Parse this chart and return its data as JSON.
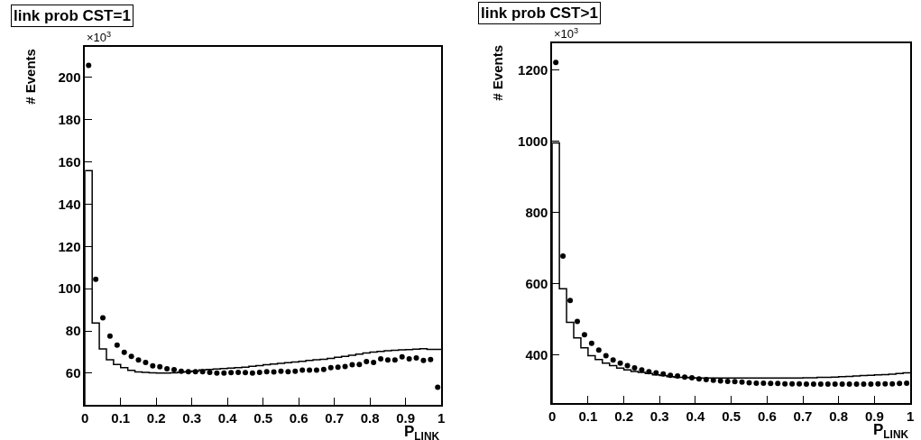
{
  "chart_data": [
    {
      "type": "histogram",
      "title": "link prob CST=1",
      "xlabel": "P$_{LINK}$",
      "ylabel": "# Events",
      "annotations": [
        "×10$^{3}$"
      ],
      "bins": [
        0,
        0.02,
        0.04,
        0.06,
        0.08,
        0.1,
        0.12,
        0.14,
        0.16,
        0.18,
        0.2,
        0.22,
        0.24,
        0.26,
        0.28,
        0.3,
        0.32,
        0.34,
        0.36,
        0.38,
        0.4,
        0.42,
        0.44,
        0.46,
        0.48,
        0.5,
        0.52,
        0.54,
        0.56,
        0.58,
        0.6,
        0.62,
        0.64,
        0.66,
        0.68,
        0.7,
        0.72,
        0.74,
        0.76,
        0.78,
        0.8,
        0.82,
        0.84,
        0.86,
        0.88,
        0.9,
        0.92,
        0.94,
        0.96,
        0.98,
        1
      ],
      "series": [
        {
          "color": "#000000",
          "values": [
            155.9,
            83.7,
            71.5,
            66.4,
            64.1,
            62.6,
            61.3,
            60.6,
            60.4,
            60.2,
            60,
            60,
            60.2,
            60.5,
            60.7,
            61,
            61.5,
            61.8,
            62,
            62.2,
            62.4,
            62.6,
            62.8,
            63.2,
            63.6,
            64,
            64.3,
            64.6,
            65,
            65.3,
            65.6,
            66,
            66.3,
            66.6,
            67,
            67.5,
            68,
            68.5,
            69,
            69.5,
            70,
            70.3,
            70.6,
            70.8,
            71,
            71.2,
            71.4,
            71.6,
            71.3,
            71.3
          ]
        },
        {
          "type": "scatter",
          "color": "#000000",
          "x": [
            0.01,
            0.03,
            0.05,
            0.07,
            0.09,
            0.11,
            0.13,
            0.15,
            0.17,
            0.19,
            0.21,
            0.23,
            0.25,
            0.27,
            0.29,
            0.31,
            0.33,
            0.35,
            0.37,
            0.39,
            0.41,
            0.43,
            0.45,
            0.47,
            0.49,
            0.51,
            0.53,
            0.55,
            0.57,
            0.59,
            0.61,
            0.63,
            0.65,
            0.67,
            0.69,
            0.71,
            0.73,
            0.75,
            0.77,
            0.79,
            0.81,
            0.83,
            0.85,
            0.87,
            0.89,
            0.91,
            0.93,
            0.95,
            0.97,
            0.99
          ],
          "values": [
            205.7,
            104.5,
            86.2,
            77.6,
            73.3,
            69.9,
            67.9,
            66.2,
            65.1,
            63.5,
            63,
            62.1,
            61.6,
            60.9,
            60.7,
            60.7,
            60.7,
            60.4,
            60,
            60.1,
            60.3,
            60.4,
            60.3,
            60.1,
            60.4,
            60.7,
            60.6,
            60.9,
            60.7,
            60.9,
            61.4,
            61.4,
            61.4,
            61.8,
            62.6,
            62.8,
            63.1,
            64,
            64.1,
            65.5,
            65.1,
            66.8,
            66.2,
            66.2,
            67.7,
            66.8,
            67.2,
            66,
            66.5,
            53.3
          ]
        }
      ],
      "xlim": [
        0,
        1
      ],
      "xticks": [
        0,
        0.1,
        0.2,
        0.3,
        0.4,
        0.5,
        0.6,
        0.7,
        0.8,
        0.9,
        1
      ],
      "ylim": [
        45,
        214.5
      ],
      "yticks": [
        60,
        80,
        100,
        120,
        140,
        160,
        180,
        200
      ],
      "marker": "circle"
    },
    {
      "type": "histogram",
      "title": "link prob CST>1",
      "xlabel": "P$_{LINK}$",
      "ylabel": "# Events",
      "annotations": [
        "×10$^{3}$"
      ],
      "bins": [
        0,
        0.02,
        0.04,
        0.06,
        0.08,
        0.1,
        0.12,
        0.14,
        0.16,
        0.18,
        0.2,
        0.22,
        0.24,
        0.26,
        0.28,
        0.3,
        0.32,
        0.34,
        0.36,
        0.38,
        0.4,
        0.42,
        0.44,
        0.46,
        0.48,
        0.5,
        0.52,
        0.54,
        0.56,
        0.58,
        0.6,
        0.62,
        0.64,
        0.66,
        0.68,
        0.7,
        0.72,
        0.74,
        0.76,
        0.78,
        0.8,
        0.82,
        0.84,
        0.86,
        0.88,
        0.9,
        0.92,
        0.94,
        0.96,
        0.98,
        1
      ],
      "series": [
        {
          "color": "#000000",
          "values": [
            995,
            585,
            491,
            447,
            419,
            397,
            386,
            376,
            369,
            362,
            357,
            353,
            350,
            347,
            343,
            341,
            338,
            336,
            336,
            335,
            334,
            334,
            334,
            334,
            334,
            334,
            334,
            334,
            334,
            334,
            334,
            334,
            334,
            334,
            334,
            335,
            335,
            336,
            336,
            337,
            338,
            339,
            340,
            341,
            342,
            343,
            344,
            345,
            347,
            349
          ]
        },
        {
          "type": "scatter",
          "color": "#000000",
          "x": [
            0.01,
            0.03,
            0.05,
            0.07,
            0.09,
            0.11,
            0.13,
            0.15,
            0.17,
            0.19,
            0.21,
            0.23,
            0.25,
            0.27,
            0.29,
            0.31,
            0.33,
            0.35,
            0.37,
            0.39,
            0.41,
            0.43,
            0.45,
            0.47,
            0.49,
            0.51,
            0.53,
            0.55,
            0.57,
            0.59,
            0.61,
            0.63,
            0.65,
            0.67,
            0.69,
            0.71,
            0.73,
            0.75,
            0.77,
            0.79,
            0.81,
            0.83,
            0.85,
            0.87,
            0.89,
            0.91,
            0.93,
            0.95,
            0.97,
            0.99
          ],
          "values": [
            1221,
            677,
            552,
            493,
            456,
            432,
            413,
            397,
            385,
            376,
            369,
            363,
            357,
            352,
            349,
            346,
            342,
            340,
            337,
            335,
            332,
            330,
            328,
            326,
            325,
            324,
            323,
            321,
            320,
            320,
            319,
            319,
            318,
            318,
            318,
            317,
            317,
            317,
            317,
            317,
            317,
            317,
            317,
            317,
            317,
            318,
            318,
            318,
            319,
            320
          ]
        }
      ],
      "xlim": [
        0,
        1
      ],
      "xticks": [
        0,
        0.1,
        0.2,
        0.3,
        0.4,
        0.5,
        0.6,
        0.7,
        0.8,
        0.9,
        1
      ],
      "ylim": [
        264,
        1275
      ],
      "yticks": [
        400,
        600,
        800,
        1000,
        1200
      ],
      "marker": "circle"
    }
  ]
}
